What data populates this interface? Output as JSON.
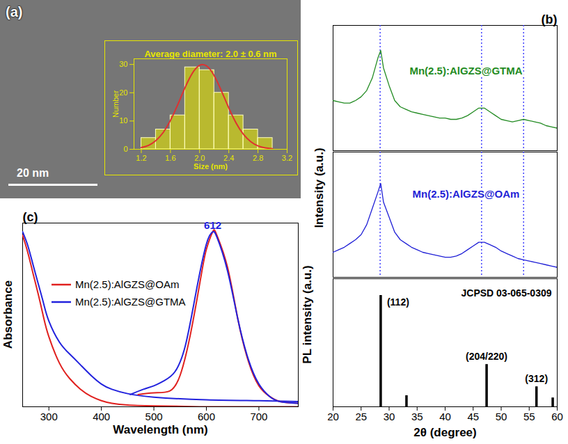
{
  "chart_data": [
    {
      "panel_label": "(a)",
      "type": "histogram",
      "title": "Average diameter: 2.0 ± 0.6 nm",
      "x_label": "Size (nm)",
      "y_label": "Number",
      "scale_bar_label": "20 nm",
      "bins": [
        1.2,
        1.4,
        1.6,
        1.8,
        2.0,
        2.2,
        2.4,
        2.6,
        2.8,
        3.0
      ],
      "values": [
        4,
        7,
        12,
        29,
        28,
        20,
        12,
        7,
        4
      ],
      "color": "#e6e600",
      "xlim": [
        1.1,
        3.2
      ],
      "xticks": [
        1.2,
        1.6,
        {
          "value": 2,
          "label": "2.0"
        },
        2.4,
        2.8,
        3.2
      ],
      "ylim": [
        0,
        32
      ],
      "yticks": [
        0,
        10,
        20,
        30
      ],
      "fit": {
        "type": "line",
        "color": "#e03030",
        "x": [
          1.2,
          1.3,
          1.4,
          1.5,
          1.6,
          1.7,
          1.8,
          1.9,
          2.0,
          2.1,
          2.2,
          2.3,
          2.4,
          2.5,
          2.6,
          2.7,
          2.8,
          2.9,
          3.0
        ],
        "values": [
          0.6,
          1.4,
          3.1,
          5.9,
          10.2,
          15.8,
          21.8,
          26.9,
          29.7,
          29.4,
          26.0,
          20.6,
          14.6,
          9.3,
          5.3,
          2.7,
          1.2,
          0.5,
          0.2
        ]
      }
    },
    {
      "panel_label": "(b)",
      "type": "line",
      "x_label": "2θ (degree)",
      "y_label": "Intensity (a.u.)",
      "tick_labels": "x",
      "xlim": [
        20,
        60
      ],
      "xticks": [
        20,
        25,
        30,
        35,
        40,
        45,
        50,
        55,
        60
      ],
      "ylim": [
        0,
        100
      ],
      "x": [
        20,
        21,
        22,
        23,
        24,
        25,
        26,
        27,
        28,
        28.5,
        29,
        30,
        31,
        32,
        33,
        34,
        35,
        36,
        37,
        38,
        39,
        40,
        41,
        42,
        43,
        44,
        45,
        46,
        47,
        48,
        49,
        50,
        51,
        52,
        53,
        54,
        55,
        56,
        57,
        58,
        59,
        60
      ],
      "series": [
        {
          "name": "Mn(2.5):AlGZS@GTMA",
          "color": "#228b22",
          "values": [
            40,
            39,
            38,
            38,
            40,
            43,
            48,
            58,
            74,
            80,
            66,
            52,
            40,
            35,
            33,
            31,
            30,
            29,
            28,
            27,
            26,
            26,
            25,
            25,
            26,
            28,
            31,
            34,
            34,
            31,
            28,
            25,
            24,
            23,
            24,
            25,
            24,
            23,
            22,
            20,
            19,
            18
          ]
        },
        {
          "name": "Mn(2.5):AlGZS@OAm",
          "color": "#1f1fd6",
          "values": [
            20,
            22,
            24,
            27,
            30,
            34,
            42,
            55,
            68,
            75,
            60,
            48,
            36,
            30,
            27,
            24,
            22,
            20,
            19,
            18,
            17,
            16,
            16,
            17,
            19,
            22,
            25,
            28,
            28,
            26,
            24,
            21,
            19,
            17,
            15,
            14,
            13,
            12,
            11,
            10,
            9,
            8
          ]
        }
      ],
      "guide_lines": {
        "x": [
          28.4,
          46.5,
          54.0
        ],
        "color": "#4040ff",
        "line_style": "dotted"
      },
      "reference": {
        "name": "JCPSD 03-065-0309",
        "type": "bar",
        "color": "#000000",
        "x": [
          28.5,
          33.1,
          47.4,
          56.3,
          59.2
        ],
        "values": [
          100,
          10,
          38,
          18,
          8
        ],
        "labels": [
          "(112)",
          null,
          "(204/220)",
          "(312)",
          null
        ],
        "ylim": [
          0,
          115
        ]
      }
    },
    {
      "panel_label": "(c)",
      "type": "line",
      "x_label": "Wavelength (nm)",
      "y_label": "Absorbance",
      "y2_label": "PL intensity (a.u.)",
      "tick_labels": "x",
      "legend": "left",
      "xlim": [
        250,
        775
      ],
      "xticks": [
        300,
        400,
        500,
        600,
        700
      ],
      "ylim": [
        0,
        1.05
      ],
      "y2lim": [
        0,
        1.05
      ],
      "series": [
        {
          "name": "Mn(2.5):AlGZS@OAm",
          "color": "#e0201e",
          "x": [
            250,
            260,
            270,
            280,
            290,
            300,
            320,
            340,
            360,
            380,
            400,
            420,
            450,
            500,
            600,
            700,
            775
          ],
          "values": [
            0.98,
            0.88,
            0.76,
            0.64,
            0.51,
            0.4,
            0.25,
            0.16,
            0.1,
            0.06,
            0.035,
            0.02,
            0.01,
            0.005,
            0,
            0,
            0
          ]
        },
        {
          "name": "Mn(2.5):AlGZS@GTMA",
          "color": "#2222dd",
          "x": [
            250,
            260,
            270,
            280,
            290,
            300,
            320,
            340,
            360,
            380,
            400,
            420,
            450,
            500,
            600,
            700,
            775
          ],
          "values": [
            1.0,
            0.92,
            0.81,
            0.7,
            0.59,
            0.49,
            0.37,
            0.3,
            0.24,
            0.18,
            0.13,
            0.1,
            0.075,
            0.055,
            0.04,
            0.035,
            0.03
          ]
        },
        {
          "name": "Mn(2.5):AlGZS@OAm",
          "color": "#e0201e",
          "axis": "y2",
          "x": [
            470,
            500,
            530,
            550,
            570,
            590,
            600,
            612,
            620,
            640,
            660,
            680,
            700,
            720,
            740,
            775
          ],
          "values": [
            0.07,
            0.08,
            0.09,
            0.18,
            0.42,
            0.75,
            0.9,
            1.0,
            0.98,
            0.8,
            0.5,
            0.26,
            0.12,
            0.06,
            0.03,
            0.02
          ]
        },
        {
          "name": "Mn(2.5):AlGZS@GTMA",
          "color": "#2222dd",
          "axis": "y2",
          "x": [
            455,
            480,
            500,
            520,
            540,
            560,
            580,
            600,
            612,
            620,
            640,
            660,
            680,
            700,
            720,
            740,
            775
          ],
          "values": [
            0.07,
            0.1,
            0.12,
            0.15,
            0.2,
            0.35,
            0.65,
            0.93,
            1.0,
            0.97,
            0.78,
            0.5,
            0.27,
            0.13,
            0.06,
            0.03,
            0.02
          ]
        }
      ],
      "annotations": [
        {
          "text": "612",
          "x": 612,
          "y": 1.0,
          "axis": "y2",
          "color": "#2222dd"
        }
      ]
    }
  ]
}
